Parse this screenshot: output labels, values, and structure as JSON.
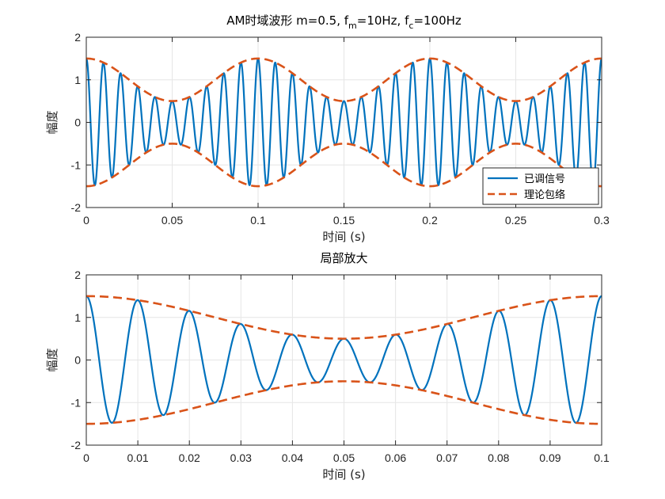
{
  "colors": {
    "signal": "#0072BD",
    "envelope": "#D95319",
    "grid": "#e6e6e6",
    "axis": "#262626"
  },
  "chart_data": [
    {
      "type": "line",
      "title": "AM时域波形  m=0.5, f",
      "title_parts": [
        {
          "text": "AM时域波形  m=0.5, f",
          "sub": false
        },
        {
          "text": "m",
          "sub": true
        },
        {
          "text": "=10Hz, f",
          "sub": false
        },
        {
          "text": "c",
          "sub": true
        },
        {
          "text": "=100Hz",
          "sub": false
        }
      ],
      "xlabel": "时间 (s)",
      "ylabel": "幅度",
      "xlim": [
        0,
        0.3
      ],
      "ylim": [
        -2,
        2
      ],
      "xticks": [
        0,
        0.05,
        0.1,
        0.15,
        0.2,
        0.25,
        0.3
      ],
      "xtick_labels": [
        "0",
        "0.05",
        "0.1",
        "0.15",
        "0.2",
        "0.25",
        "0.3"
      ],
      "yticks": [
        -2,
        -1,
        0,
        1,
        2
      ],
      "ytick_labels": [
        "-2",
        "-1",
        "0",
        "1",
        "2"
      ],
      "grid": true,
      "legend": {
        "placement": "bottom-right",
        "entries": [
          "已调信号",
          "理论包络"
        ]
      },
      "series": [
        {
          "name": "已调信号",
          "formula": "(1 + 0.5 cos(2π·10·t)) · cos(2π·100·t)",
          "m": 0.5,
          "fm": 10,
          "fc": 100,
          "style": "solid"
        },
        {
          "name": "理论包络",
          "formula": "±(1 + 0.5 cos(2π·10·t))",
          "m": 0.5,
          "fm": 10,
          "style": "dashed"
        }
      ]
    },
    {
      "type": "line",
      "title": "局部放大",
      "title_parts": [
        {
          "text": "局部放大",
          "sub": false
        }
      ],
      "xlabel": "时间 (s)",
      "ylabel": "幅度",
      "xlim": [
        0,
        0.1
      ],
      "ylim": [
        -2,
        2
      ],
      "xticks": [
        0,
        0.01,
        0.02,
        0.03,
        0.04,
        0.05,
        0.06,
        0.07,
        0.08,
        0.09,
        0.1
      ],
      "xtick_labels": [
        "0",
        "0.01",
        "0.02",
        "0.03",
        "0.04",
        "0.05",
        "0.06",
        "0.07",
        "0.08",
        "0.09",
        "0.1"
      ],
      "yticks": [
        -2,
        -1,
        0,
        1,
        2
      ],
      "ytick_labels": [
        "-2",
        "-1",
        "0",
        "1",
        "2"
      ],
      "grid": true,
      "series": [
        {
          "formula": "(1 + 0.5 cos(2π·10·t)) · cos(2π·100·t)",
          "m": 0.5,
          "fm": 10,
          "fc": 100,
          "style": "solid"
        },
        {
          "formula": "±(1 + 0.5 cos(2π·10·t))",
          "m": 0.5,
          "fm": 10,
          "style": "dashed"
        }
      ]
    }
  ]
}
